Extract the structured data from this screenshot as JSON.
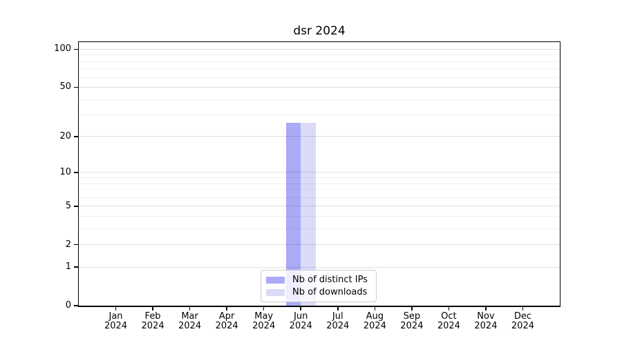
{
  "title": "dsr 2024",
  "y_axis": {
    "major_ticks": [
      0,
      1,
      2,
      5,
      10,
      20,
      50,
      100
    ],
    "minor_ticks": [
      3,
      4,
      6,
      7,
      8,
      9,
      30,
      40,
      60,
      70,
      80,
      90
    ]
  },
  "legend": {
    "entries": [
      {
        "label": "Nb of distinct IPs",
        "color": "#aaaaf6"
      },
      {
        "label": "Nb of downloads",
        "color": "#dbdbf8"
      }
    ]
  },
  "chart_data": {
    "type": "bar",
    "title": "dsr 2024",
    "categories": [
      "Jan 2024",
      "Feb 2024",
      "Mar 2024",
      "Apr 2024",
      "May 2024",
      "Jun 2024",
      "Jul 2024",
      "Aug 2024",
      "Sep 2024",
      "Oct 2024",
      "Nov 2024",
      "Dec 2024"
    ],
    "series": [
      {
        "name": "Nb of distinct IPs",
        "color": "#aaaaf6",
        "values": [
          0,
          0,
          0,
          0,
          0,
          26,
          0,
          0,
          0,
          0,
          0,
          0
        ]
      },
      {
        "name": "Nb of downloads",
        "color": "#dbdbf8",
        "values": [
          0,
          0,
          0,
          0,
          0,
          26,
          0,
          0,
          0,
          0,
          0,
          0
        ]
      }
    ],
    "xlabel": "",
    "ylabel": "",
    "yscale": "log1p",
    "ylim": [
      0,
      114
    ],
    "yticks": [
      0,
      1,
      2,
      5,
      10,
      20,
      50,
      100
    ],
    "grid": true,
    "legend_position": "lower center"
  }
}
